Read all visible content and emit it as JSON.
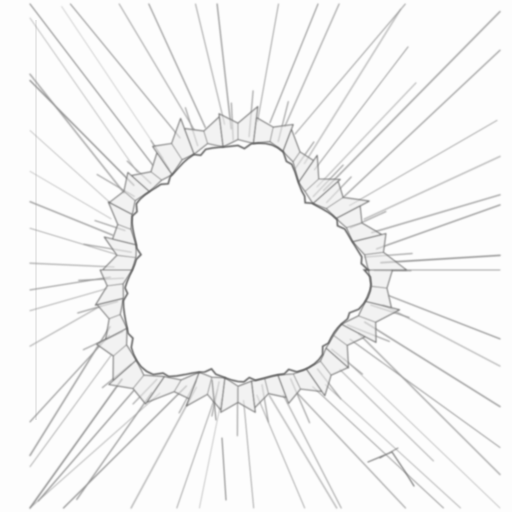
{
  "scene": {
    "subject": "shattered-glass-hole-sketch",
    "colors": {
      "paper": "#fdfdfd",
      "pencil_dark": "#5c5c5c",
      "pencil_mid": "#7a7a7a",
      "pencil_light": "#8a8a8a",
      "fragment_fill": "#e9e9e9"
    },
    "ray_count": 58,
    "fragment_count": 26
  }
}
